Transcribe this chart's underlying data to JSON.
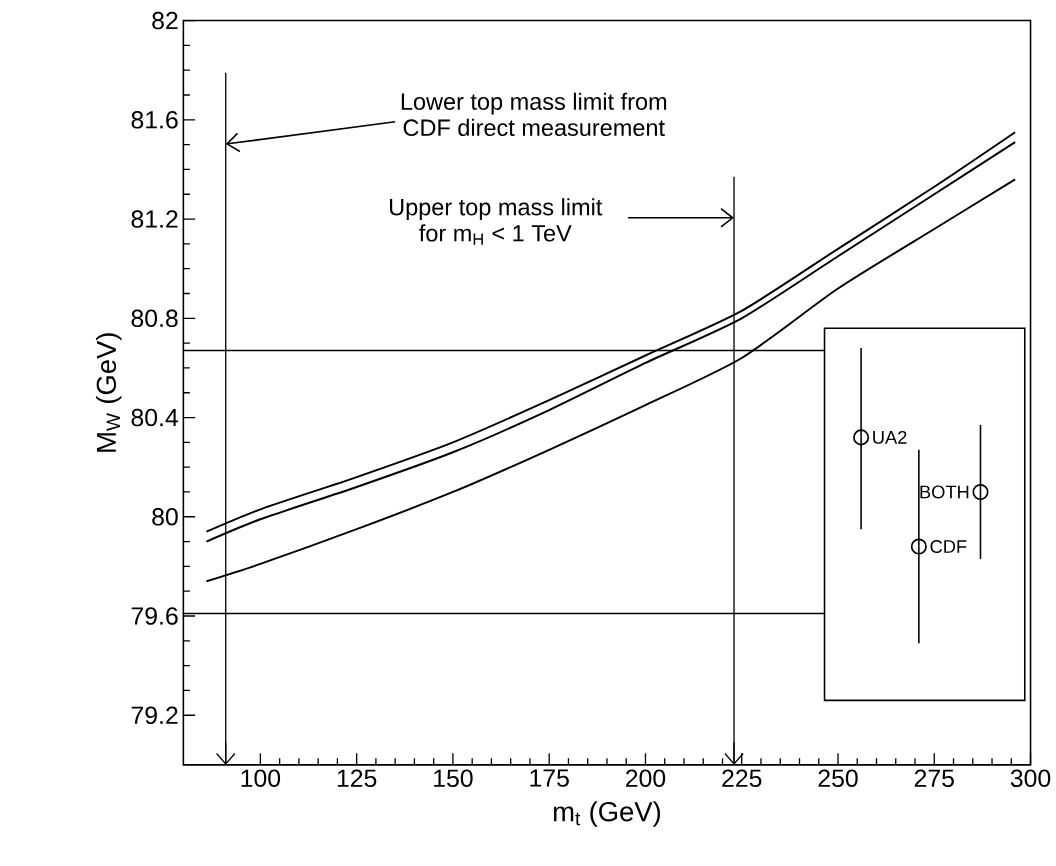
{
  "chart_data": {
    "type": "line",
    "xlabel": "m$_{t}$ (GeV)",
    "ylabel": "M$_{W}$ (GeV)",
    "xlim": [
      80,
      300
    ],
    "ylim": [
      79,
      82
    ],
    "xticks": [
      100,
      125,
      150,
      175,
      200,
      225,
      250,
      275,
      300
    ],
    "yticks": [
      79.2,
      79.6,
      80,
      80.4,
      80.8,
      81.2,
      81.6,
      82
    ],
    "line_style": "solid",
    "series": [
      {
        "color": "#000000",
        "x": [
          86,
          100,
          125,
          150,
          175,
          200,
          225,
          250,
          275,
          296
        ],
        "values": [
          79.94,
          80.03,
          80.16,
          80.3,
          80.47,
          80.65,
          80.83,
          81.08,
          81.33,
          81.55
        ]
      },
      {
        "color": "#000000",
        "x": [
          86,
          100,
          125,
          150,
          175,
          200,
          225,
          250,
          275,
          296
        ],
        "values": [
          79.9,
          79.99,
          80.12,
          80.26,
          80.43,
          80.62,
          80.8,
          81.05,
          81.3,
          81.51
        ]
      },
      {
        "color": "#000000",
        "x": [
          86,
          100,
          125,
          150,
          175,
          200,
          225,
          250,
          275,
          296
        ],
        "values": [
          79.74,
          79.81,
          79.95,
          80.1,
          80.27,
          80.45,
          80.64,
          80.92,
          81.16,
          81.36
        ]
      },
      {
        "type": "scatter",
        "name": "UA2",
        "color": "#000000",
        "marker": "circle",
        "x": [
          256
        ],
        "values": [
          80.32
        ],
        "errors": [
          [
            79.95,
            80.68
          ]
        ]
      },
      {
        "type": "scatter",
        "name": "CDF",
        "color": "#000000",
        "marker": "circle",
        "x": [
          271
        ],
        "values": [
          79.88
        ],
        "errors": [
          [
            79.49,
            80.27
          ]
        ]
      },
      {
        "type": "scatter",
        "name": "BOTH",
        "color": "#000000",
        "marker": "circle",
        "x": [
          287
        ],
        "values": [
          80.1
        ],
        "errors": [
          [
            79.83,
            80.37
          ]
        ]
      }
    ],
    "ref_lines": [
      {
        "axis": "y",
        "value": 80.67
      },
      {
        "axis": "y",
        "value": 79.61
      },
      {
        "axis": "x",
        "value": 91,
        "label": "Lower top mass limit from CDF direct measurement"
      },
      {
        "axis": "x",
        "value": 223,
        "label": "Upper top mass limit for m$_{H}$ < 1 TeV"
      }
    ]
  }
}
